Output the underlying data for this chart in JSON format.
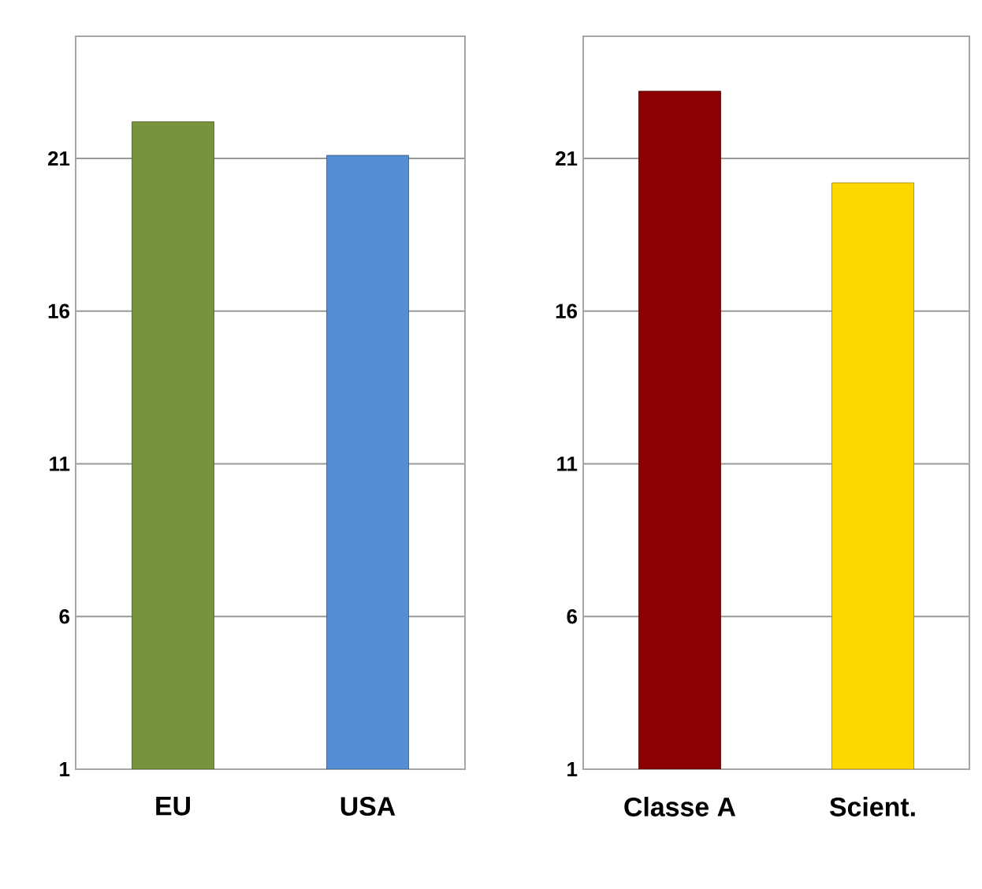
{
  "chart_data": [
    {
      "type": "bar",
      "categories": [
        "EU",
        "USA"
      ],
      "values": [
        22.2,
        21.1
      ],
      "colors": [
        "#77933c",
        "#558ed5"
      ],
      "ylim": [
        1,
        25
      ],
      "yticks": [
        1,
        6,
        11,
        16,
        21
      ],
      "grid": "y"
    },
    {
      "type": "bar",
      "categories": [
        "Classe A",
        "Scient."
      ],
      "values": [
        23.2,
        20.2
      ],
      "colors": [
        "#8b0000",
        "#ffd700"
      ],
      "ylim": [
        1,
        25
      ],
      "yticks": [
        1,
        6,
        11,
        16,
        21
      ],
      "grid": "y"
    }
  ]
}
